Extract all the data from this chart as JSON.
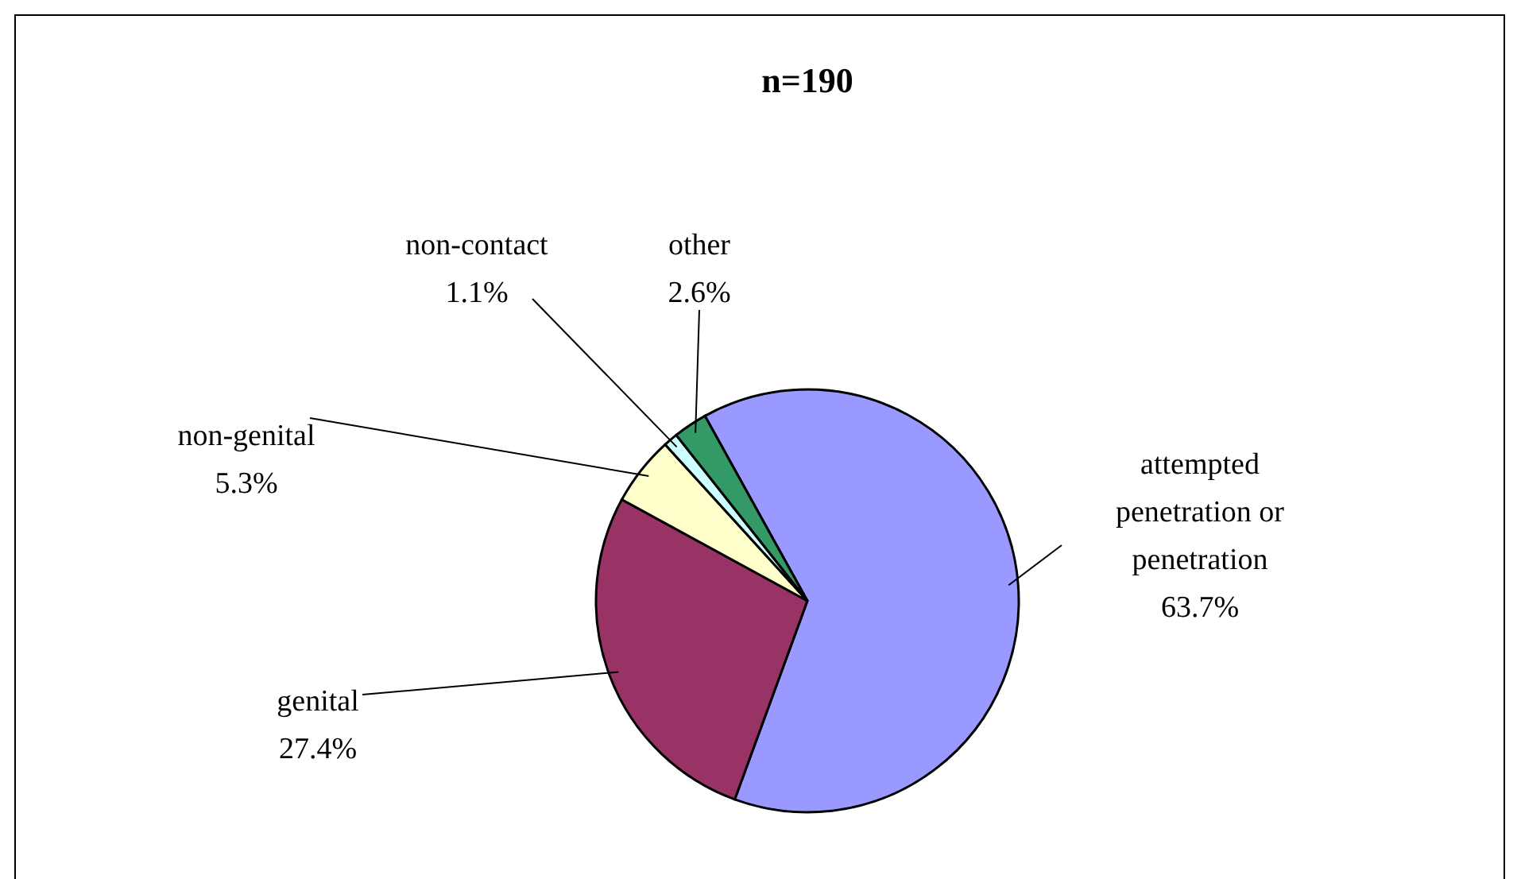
{
  "chart_data": {
    "type": "pie",
    "title": "n=190",
    "categories": [
      "attempted penetration or penetration",
      "genital",
      "non-genital",
      "non-contact",
      "other"
    ],
    "values": [
      63.7,
      27.4,
      5.3,
      1.1,
      2.6
    ],
    "colors": [
      "#9999ff",
      "#993366",
      "#ffffcc",
      "#ccffff",
      "#339966"
    ],
    "value_labels": [
      "63.7%",
      "27.4%",
      "5.3%",
      "1.1%",
      "2.6%"
    ]
  }
}
